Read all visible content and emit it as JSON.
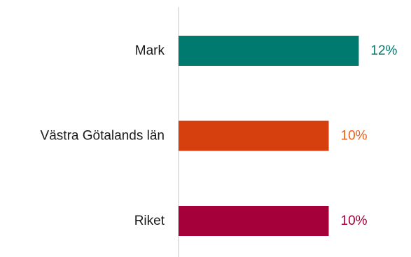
{
  "chart_data": {
    "type": "bar",
    "orientation": "horizontal",
    "categories": [
      "Mark",
      "Västra Götalands län",
      "Riket"
    ],
    "values": [
      12,
      10,
      10
    ],
    "value_labels": [
      "12%",
      "10%",
      "10%"
    ],
    "colors": [
      "#007a6e",
      "#d6400f",
      "#a5003a"
    ],
    "label_colors": [
      "#007a6e",
      "#e8621e",
      "#a5003a"
    ],
    "axis_color": "#d9d9d9",
    "unit": "%",
    "xlim": [
      0,
      12.4
    ],
    "grid": false,
    "legend": "none",
    "title": "",
    "xlabel": "",
    "ylabel": ""
  }
}
